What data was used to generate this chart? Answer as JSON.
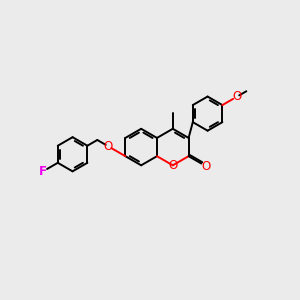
{
  "bg_color": "#ebebeb",
  "bond_color": "#000000",
  "oxygen_color": "#ff0000",
  "fluorine_color": "#ee00ee",
  "lw": 1.4,
  "figsize": [
    3.0,
    3.0
  ],
  "dpi": 100,
  "xlim": [
    0,
    10
  ],
  "ylim": [
    0,
    10
  ]
}
